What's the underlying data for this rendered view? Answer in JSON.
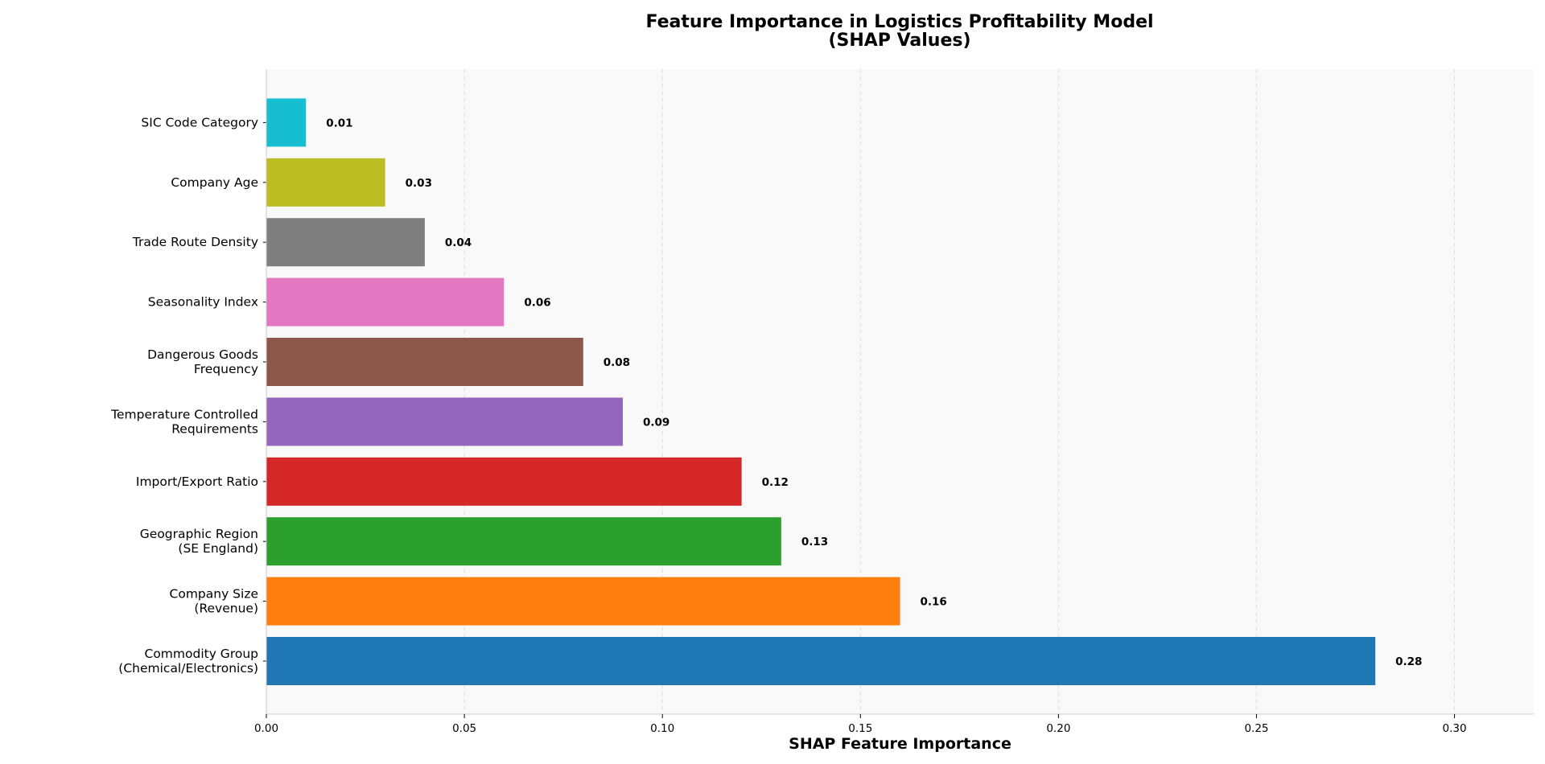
{
  "chart_data": {
    "type": "bar",
    "orientation": "horizontal",
    "title": [
      "Feature Importance in Logistics Profitability Model",
      "(SHAP Values)"
    ],
    "xlabel": "SHAP Feature Importance",
    "ylabel": "",
    "xlim": [
      0,
      0.32
    ],
    "xticks": [
      "0.00",
      "0.05",
      "0.10",
      "0.15",
      "0.20",
      "0.25",
      "0.30"
    ],
    "grid": "x-dashed",
    "categories": [
      [
        "Commodity Group",
        "(Chemical/Electronics)"
      ],
      [
        "Company Size",
        "(Revenue)"
      ],
      [
        "Geographic Region",
        "(SE England)"
      ],
      [
        "Import/Export Ratio"
      ],
      [
        "Temperature Controlled",
        "Requirements"
      ],
      [
        "Dangerous Goods",
        "Frequency"
      ],
      [
        "Seasonality Index"
      ],
      [
        "Trade Route Density"
      ],
      [
        "Company Age"
      ],
      [
        "SIC Code Category"
      ]
    ],
    "values": [
      0.28,
      0.16,
      0.13,
      0.12,
      0.09,
      0.08,
      0.06,
      0.04,
      0.03,
      0.01
    ],
    "data_labels": [
      "0.28",
      "0.16",
      "0.13",
      "0.12",
      "0.09",
      "0.08",
      "0.06",
      "0.04",
      "0.03",
      "0.01"
    ],
    "colors": [
      "#1f77b4",
      "#ff7f0e",
      "#2ca02c",
      "#d62728",
      "#9467bd",
      "#8c564b",
      "#e377c2",
      "#7f7f7f",
      "#bcbd22",
      "#17becf"
    ],
    "plot_background": "#f9f9f9"
  }
}
